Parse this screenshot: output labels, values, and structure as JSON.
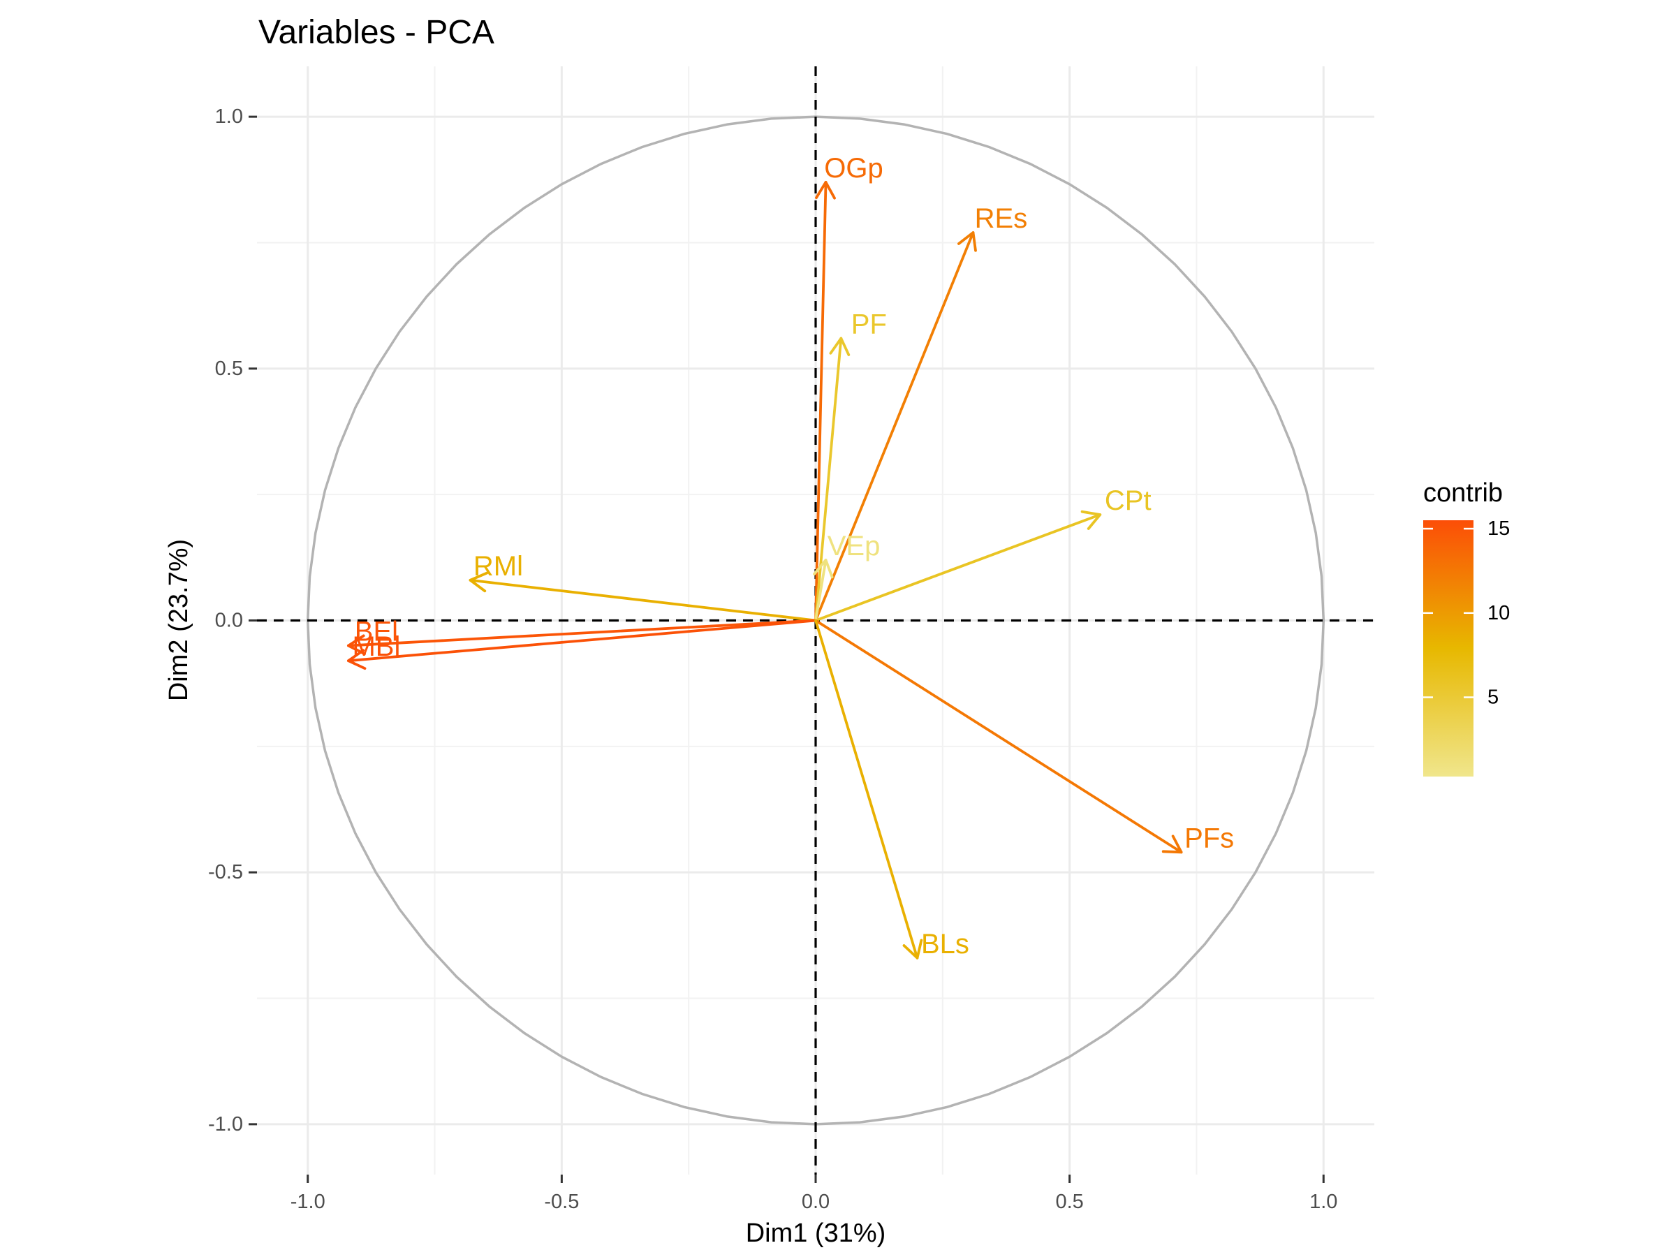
{
  "chart_data": {
    "type": "scatter",
    "subtype": "pca-variable-correlation-circle",
    "title": "Variables - PCA",
    "xlabel": "Dim1 (31%)",
    "ylabel": "Dim2 (23.7%)",
    "xlim": [
      -1.1,
      1.1
    ],
    "ylim": [
      -1.1,
      1.1
    ],
    "x_ticks": [
      -1.0,
      -0.5,
      0.0,
      0.5,
      1.0
    ],
    "y_ticks": [
      -1.0,
      -0.5,
      0.0,
      0.5,
      1.0
    ],
    "x_tick_labels": [
      "-1.0",
      "-0.5",
      "0.0",
      "0.5",
      "1.0"
    ],
    "y_tick_labels": [
      "-1.0",
      "-0.5",
      "0.0",
      "0.5",
      "1.0"
    ],
    "grid": true,
    "unit_circle": true,
    "reference_lines": [
      0,
      0
    ],
    "color_scale": {
      "name": "contrib",
      "min": 0.3,
      "max": 15.5,
      "ticks": [
        5,
        10,
        15
      ],
      "tick_labels": [
        "5",
        "10",
        "15"
      ],
      "low_color": "#F0E68C",
      "mid_color": "#E7B800",
      "high_color": "#FC4E07"
    },
    "legend_position": "right",
    "variables": [
      {
        "name": "OGp",
        "x": 0.02,
        "y": 0.87,
        "contrib": 13.5
      },
      {
        "name": "REs",
        "x": 0.31,
        "y": 0.77,
        "contrib": 12.0
      },
      {
        "name": "PF",
        "x": 0.05,
        "y": 0.56,
        "contrib": 5.5
      },
      {
        "name": "CPt",
        "x": 0.56,
        "y": 0.21,
        "contrib": 6.0
      },
      {
        "name": "VEp",
        "x": 0.02,
        "y": 0.12,
        "contrib": 1.0
      },
      {
        "name": "RMl",
        "x": -0.68,
        "y": 0.08,
        "contrib": 8.5
      },
      {
        "name": "BEl",
        "x": -0.92,
        "y": -0.05,
        "contrib": 15.0
      },
      {
        "name": "MBl",
        "x": -0.92,
        "y": -0.08,
        "contrib": 15.3
      },
      {
        "name": "PFs",
        "x": 0.72,
        "y": -0.46,
        "contrib": 12.5
      },
      {
        "name": "BLs",
        "x": 0.2,
        "y": -0.67,
        "contrib": 8.5
      }
    ]
  }
}
